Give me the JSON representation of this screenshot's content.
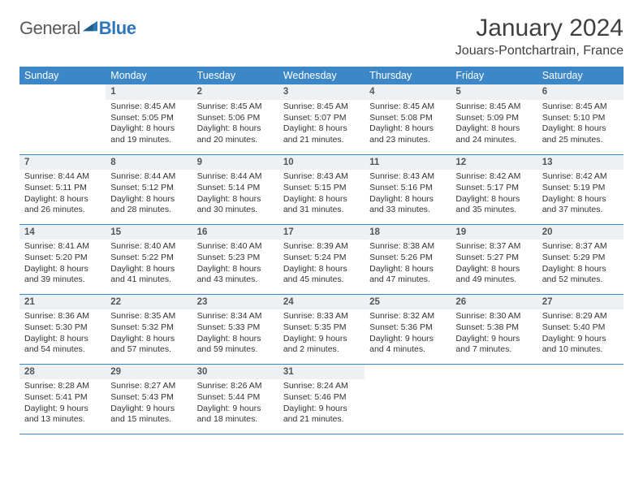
{
  "logo": {
    "general": "General",
    "blue": "Blue"
  },
  "title": "January 2024",
  "location": "Jouars-Pontchartrain, France",
  "colors": {
    "header_bg": "#3c87c7",
    "header_fg": "#ffffff",
    "daynum_bg": "#eef1f3",
    "rule": "#3c87c7",
    "logo_blue": "#2f78b7",
    "logo_grey": "#5a5a5a"
  },
  "weekdays": [
    "Sunday",
    "Monday",
    "Tuesday",
    "Wednesday",
    "Thursday",
    "Friday",
    "Saturday"
  ],
  "first_weekday_index": 1,
  "days": [
    {
      "n": 1,
      "sr": "8:45 AM",
      "ss": "5:05 PM",
      "dl1": "Daylight: 8 hours",
      "dl2": "and 19 minutes."
    },
    {
      "n": 2,
      "sr": "8:45 AM",
      "ss": "5:06 PM",
      "dl1": "Daylight: 8 hours",
      "dl2": "and 20 minutes."
    },
    {
      "n": 3,
      "sr": "8:45 AM",
      "ss": "5:07 PM",
      "dl1": "Daylight: 8 hours",
      "dl2": "and 21 minutes."
    },
    {
      "n": 4,
      "sr": "8:45 AM",
      "ss": "5:08 PM",
      "dl1": "Daylight: 8 hours",
      "dl2": "and 23 minutes."
    },
    {
      "n": 5,
      "sr": "8:45 AM",
      "ss": "5:09 PM",
      "dl1": "Daylight: 8 hours",
      "dl2": "and 24 minutes."
    },
    {
      "n": 6,
      "sr": "8:45 AM",
      "ss": "5:10 PM",
      "dl1": "Daylight: 8 hours",
      "dl2": "and 25 minutes."
    },
    {
      "n": 7,
      "sr": "8:44 AM",
      "ss": "5:11 PM",
      "dl1": "Daylight: 8 hours",
      "dl2": "and 26 minutes."
    },
    {
      "n": 8,
      "sr": "8:44 AM",
      "ss": "5:12 PM",
      "dl1": "Daylight: 8 hours",
      "dl2": "and 28 minutes."
    },
    {
      "n": 9,
      "sr": "8:44 AM",
      "ss": "5:14 PM",
      "dl1": "Daylight: 8 hours",
      "dl2": "and 30 minutes."
    },
    {
      "n": 10,
      "sr": "8:43 AM",
      "ss": "5:15 PM",
      "dl1": "Daylight: 8 hours",
      "dl2": "and 31 minutes."
    },
    {
      "n": 11,
      "sr": "8:43 AM",
      "ss": "5:16 PM",
      "dl1": "Daylight: 8 hours",
      "dl2": "and 33 minutes."
    },
    {
      "n": 12,
      "sr": "8:42 AM",
      "ss": "5:17 PM",
      "dl1": "Daylight: 8 hours",
      "dl2": "and 35 minutes."
    },
    {
      "n": 13,
      "sr": "8:42 AM",
      "ss": "5:19 PM",
      "dl1": "Daylight: 8 hours",
      "dl2": "and 37 minutes."
    },
    {
      "n": 14,
      "sr": "8:41 AM",
      "ss": "5:20 PM",
      "dl1": "Daylight: 8 hours",
      "dl2": "and 39 minutes."
    },
    {
      "n": 15,
      "sr": "8:40 AM",
      "ss": "5:22 PM",
      "dl1": "Daylight: 8 hours",
      "dl2": "and 41 minutes."
    },
    {
      "n": 16,
      "sr": "8:40 AM",
      "ss": "5:23 PM",
      "dl1": "Daylight: 8 hours",
      "dl2": "and 43 minutes."
    },
    {
      "n": 17,
      "sr": "8:39 AM",
      "ss": "5:24 PM",
      "dl1": "Daylight: 8 hours",
      "dl2": "and 45 minutes."
    },
    {
      "n": 18,
      "sr": "8:38 AM",
      "ss": "5:26 PM",
      "dl1": "Daylight: 8 hours",
      "dl2": "and 47 minutes."
    },
    {
      "n": 19,
      "sr": "8:37 AM",
      "ss": "5:27 PM",
      "dl1": "Daylight: 8 hours",
      "dl2": "and 49 minutes."
    },
    {
      "n": 20,
      "sr": "8:37 AM",
      "ss": "5:29 PM",
      "dl1": "Daylight: 8 hours",
      "dl2": "and 52 minutes."
    },
    {
      "n": 21,
      "sr": "8:36 AM",
      "ss": "5:30 PM",
      "dl1": "Daylight: 8 hours",
      "dl2": "and 54 minutes."
    },
    {
      "n": 22,
      "sr": "8:35 AM",
      "ss": "5:32 PM",
      "dl1": "Daylight: 8 hours",
      "dl2": "and 57 minutes."
    },
    {
      "n": 23,
      "sr": "8:34 AM",
      "ss": "5:33 PM",
      "dl1": "Daylight: 8 hours",
      "dl2": "and 59 minutes."
    },
    {
      "n": 24,
      "sr": "8:33 AM",
      "ss": "5:35 PM",
      "dl1": "Daylight: 9 hours",
      "dl2": "and 2 minutes."
    },
    {
      "n": 25,
      "sr": "8:32 AM",
      "ss": "5:36 PM",
      "dl1": "Daylight: 9 hours",
      "dl2": "and 4 minutes."
    },
    {
      "n": 26,
      "sr": "8:30 AM",
      "ss": "5:38 PM",
      "dl1": "Daylight: 9 hours",
      "dl2": "and 7 minutes."
    },
    {
      "n": 27,
      "sr": "8:29 AM",
      "ss": "5:40 PM",
      "dl1": "Daylight: 9 hours",
      "dl2": "and 10 minutes."
    },
    {
      "n": 28,
      "sr": "8:28 AM",
      "ss": "5:41 PM",
      "dl1": "Daylight: 9 hours",
      "dl2": "and 13 minutes."
    },
    {
      "n": 29,
      "sr": "8:27 AM",
      "ss": "5:43 PM",
      "dl1": "Daylight: 9 hours",
      "dl2": "and 15 minutes."
    },
    {
      "n": 30,
      "sr": "8:26 AM",
      "ss": "5:44 PM",
      "dl1": "Daylight: 9 hours",
      "dl2": "and 18 minutes."
    },
    {
      "n": 31,
      "sr": "8:24 AM",
      "ss": "5:46 PM",
      "dl1": "Daylight: 9 hours",
      "dl2": "and 21 minutes."
    }
  ],
  "labels": {
    "sunrise": "Sunrise:",
    "sunset": "Sunset:"
  }
}
